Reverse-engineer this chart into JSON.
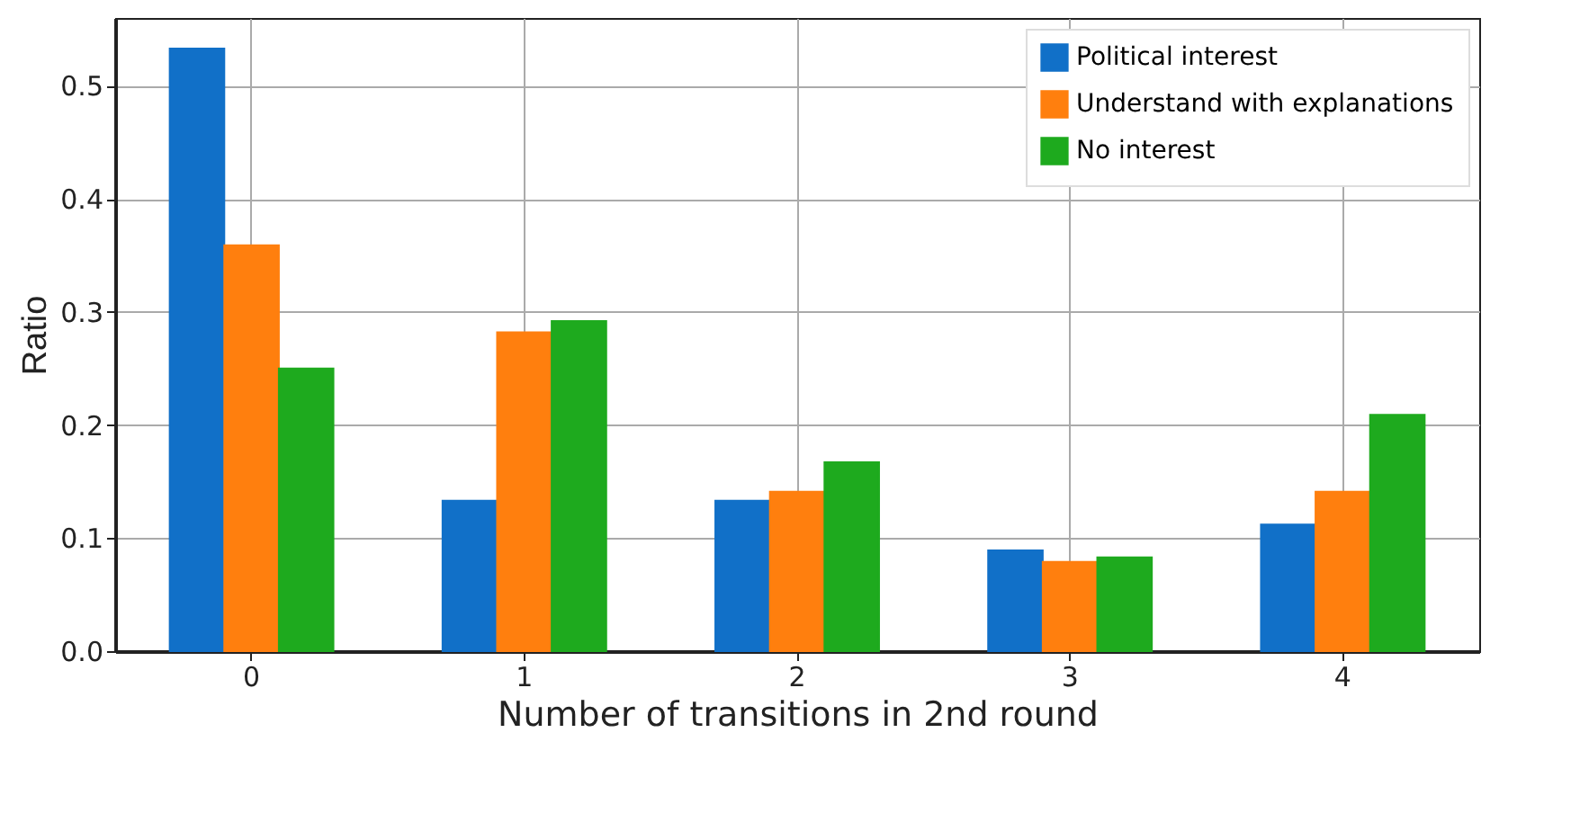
{
  "chart_data": {
    "type": "bar",
    "xlabel": "Number of transitions in 2nd round",
    "ylabel": "Ratio",
    "categories": [
      "0",
      "1",
      "2",
      "3",
      "4"
    ],
    "series": [
      {
        "name": "Political interest",
        "color": "#1170c8",
        "values": [
          0.533,
          0.133,
          0.133,
          0.089,
          0.112
        ]
      },
      {
        "name": "Understand with explanations",
        "color": "#ff7f0e",
        "values": [
          0.359,
          0.282,
          0.141,
          0.079,
          0.141
        ]
      },
      {
        "name": "No interest",
        "color": "#1eaa1e",
        "values": [
          0.25,
          0.292,
          0.167,
          0.083,
          0.209
        ]
      }
    ],
    "ylim": [
      0,
      0.56
    ],
    "yticks": [
      {
        "value": 0,
        "label": "0.0"
      },
      0.1,
      0.2,
      0.3,
      0.4,
      0.5
    ],
    "grid": true,
    "legend": "top right"
  }
}
